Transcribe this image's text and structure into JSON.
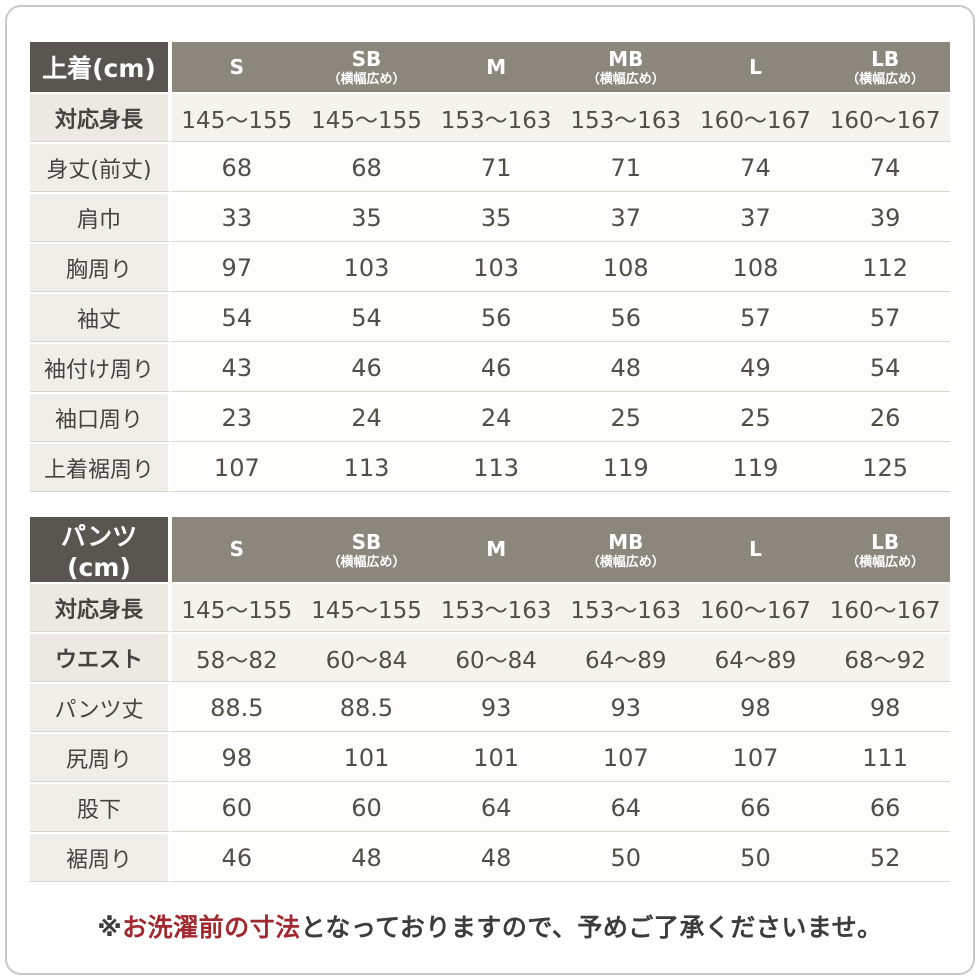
{
  "chart_data": [
    {
      "type": "table",
      "title": "上着(cm)",
      "columns": [
        {
          "label": "S",
          "sub": ""
        },
        {
          "label": "SB",
          "sub": "（横幅広め）"
        },
        {
          "label": "M",
          "sub": ""
        },
        {
          "label": "MB",
          "sub": "（横幅広め）"
        },
        {
          "label": "L",
          "sub": ""
        },
        {
          "label": "LB",
          "sub": "（横幅広め）"
        }
      ],
      "rows": [
        {
          "label": "対応身長",
          "shaded": true,
          "values": [
            "145～155",
            "145～155",
            "153～163",
            "153～163",
            "160～167",
            "160～167"
          ]
        },
        {
          "label": "身丈(前丈)",
          "shaded": false,
          "values": [
            "68",
            "68",
            "71",
            "71",
            "74",
            "74"
          ]
        },
        {
          "label": "肩巾",
          "shaded": false,
          "values": [
            "33",
            "35",
            "35",
            "37",
            "37",
            "39"
          ]
        },
        {
          "label": "胸周り",
          "shaded": false,
          "values": [
            "97",
            "103",
            "103",
            "108",
            "108",
            "112"
          ]
        },
        {
          "label": "袖丈",
          "shaded": false,
          "values": [
            "54",
            "54",
            "56",
            "56",
            "57",
            "57"
          ]
        },
        {
          "label": "袖付け周り",
          "shaded": false,
          "values": [
            "43",
            "46",
            "46",
            "48",
            "49",
            "54"
          ]
        },
        {
          "label": "袖口周り",
          "shaded": false,
          "values": [
            "23",
            "24",
            "24",
            "25",
            "25",
            "26"
          ]
        },
        {
          "label": "上着裾周り",
          "shaded": false,
          "values": [
            "107",
            "113",
            "113",
            "119",
            "119",
            "125"
          ]
        }
      ]
    },
    {
      "type": "table",
      "title": "パンツ(cm)",
      "columns": [
        {
          "label": "S",
          "sub": ""
        },
        {
          "label": "SB",
          "sub": "（横幅広め）"
        },
        {
          "label": "M",
          "sub": ""
        },
        {
          "label": "MB",
          "sub": "（横幅広め）"
        },
        {
          "label": "L",
          "sub": ""
        },
        {
          "label": "LB",
          "sub": "（横幅広め）"
        }
      ],
      "rows": [
        {
          "label": "対応身長",
          "shaded": true,
          "values": [
            "145～155",
            "145～155",
            "153～163",
            "153～163",
            "160～167",
            "160～167"
          ]
        },
        {
          "label": "ウエスト",
          "shaded": true,
          "values": [
            "58～82",
            "60～84",
            "60～84",
            "64～89",
            "64～89",
            "68～92"
          ]
        },
        {
          "label": "パンツ丈",
          "shaded": false,
          "values": [
            "88.5",
            "88.5",
            "93",
            "93",
            "98",
            "98"
          ]
        },
        {
          "label": "尻周り",
          "shaded": false,
          "values": [
            "98",
            "101",
            "101",
            "107",
            "107",
            "111"
          ]
        },
        {
          "label": "股下",
          "shaded": false,
          "values": [
            "60",
            "60",
            "64",
            "64",
            "66",
            "66"
          ]
        },
        {
          "label": "裾周り",
          "shaded": false,
          "values": [
            "46",
            "48",
            "48",
            "50",
            "50",
            "52"
          ]
        }
      ]
    }
  ],
  "note": {
    "prefix": "※",
    "highlight": "お洗濯前の寸法",
    "suffix": "となっておりますので、予めご了承くださいませ。"
  },
  "colors": {
    "header_title_bg": "#595650",
    "header_bg": "#8b877d",
    "label_column_bg": "#f0eee8",
    "shaded_row_bg": "#f5f3ee",
    "row_bg": "#fdfdfc",
    "separator": "#d8d5ce",
    "text": "#514e48",
    "note_text": "#3c3c3c",
    "note_highlight": "#a1282f",
    "card_border": "#c9c9c9"
  }
}
